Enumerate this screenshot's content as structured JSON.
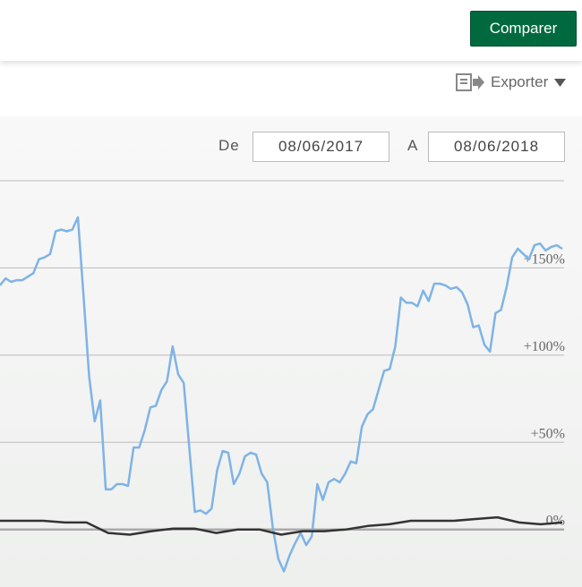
{
  "header": {
    "compare_button": "Comparer",
    "export_label": "Exporter"
  },
  "date_range": {
    "from_label": "De",
    "from_value": "08/06/2017",
    "to_label": "A",
    "to_value": "08/06/2018"
  },
  "chart_data": {
    "type": "line",
    "series": [
      {
        "color": "#7fb3e6",
        "values": [
          140,
          144,
          142,
          143,
          143,
          145,
          147,
          155,
          156,
          158,
          171,
          172,
          171,
          172,
          179,
          134,
          88,
          62,
          74,
          23,
          23,
          26,
          26,
          25,
          47,
          47,
          57,
          70,
          71,
          80,
          85,
          105,
          89,
          84,
          47,
          10,
          11,
          9,
          12,
          34,
          45,
          44,
          26,
          32,
          42,
          44,
          43,
          32,
          27,
          1,
          -17,
          -24,
          -15,
          -8,
          -2,
          -9,
          -4,
          26,
          17,
          27,
          29,
          27,
          32,
          39,
          38,
          59,
          66,
          69,
          80,
          91,
          92,
          105,
          133,
          130,
          130,
          128,
          137,
          131,
          141,
          141,
          140,
          138,
          139,
          136,
          129,
          116,
          117,
          106,
          102,
          124,
          126,
          139,
          156,
          161,
          158,
          155,
          163,
          164,
          160,
          162,
          163,
          161
        ]
      },
      {
        "color": "#333333",
        "values": [
          5,
          5,
          5,
          4,
          4,
          -2,
          -3,
          -1,
          0.5,
          0.5,
          -2,
          0,
          0,
          -3,
          -1,
          -1,
          0,
          2,
          3,
          5,
          5,
          5,
          6,
          7,
          4,
          3,
          4
        ]
      }
    ],
    "ylim": [
      -33,
      200
    ],
    "yticks": [
      {
        "value": 150,
        "label": "+150%"
      },
      {
        "value": 100,
        "label": "+100%"
      },
      {
        "value": 50,
        "label": "+50%"
      },
      {
        "value": 0,
        "label": "0%"
      }
    ],
    "grid": true
  }
}
